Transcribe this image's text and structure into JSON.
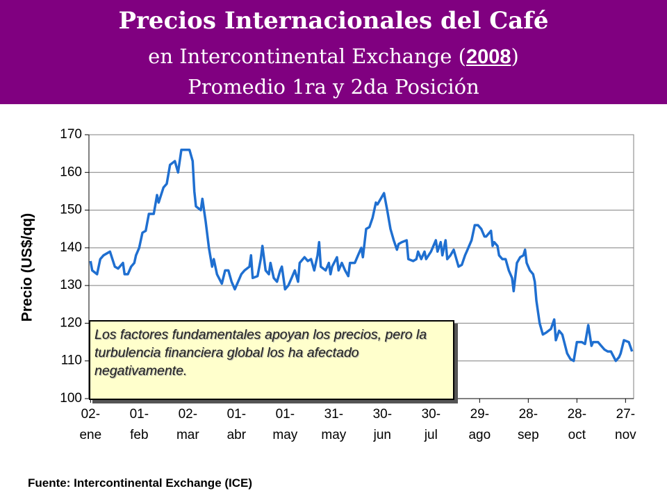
{
  "header": {
    "title": "Precios Internacionales del Café",
    "subtitle_prefix": "en Intercontinental Exchange (",
    "subtitle_year": "2008",
    "subtitle_suffix": ")",
    "subtitle_line2": "Promedio 1ra y 2da Posición"
  },
  "chart_data": {
    "type": "line",
    "y_label": "Precio (US$/qq)",
    "annotation": "Los factores fundamentales apoyan los precios, pero la turbulencia financiera global los ha afectado negativamente.",
    "xlim": [
      -1,
      335
    ],
    "xticks": [
      {
        "value": 0,
        "label": "02-\nene"
      },
      {
        "value": 30,
        "label": "01-\nfeb"
      },
      {
        "value": 60,
        "label": "02-\nmar"
      },
      {
        "value": 90,
        "label": "01-\nabr"
      },
      {
        "value": 120,
        "label": "01-\nmay"
      },
      {
        "value": 150,
        "label": "31-\nmay"
      },
      {
        "value": 180,
        "label": "30-\njun"
      },
      {
        "value": 210,
        "label": "30-\njul"
      },
      {
        "value": 240,
        "label": "29-\nago"
      },
      {
        "value": 270,
        "label": "28-\nsep"
      },
      {
        "value": 300,
        "label": "28-\noct"
      },
      {
        "value": 330,
        "label": "27-\nnov"
      }
    ],
    "ylim": [
      100,
      170
    ],
    "yticks": [
      100,
      110,
      120,
      130,
      140,
      150,
      160,
      170
    ],
    "grid": true,
    "series": [
      {
        "name": "Precio",
        "color": "#1f6fd0",
        "x": [
          0,
          1,
          4,
          6,
          8,
          12,
          15,
          17,
          20,
          21,
          23,
          25,
          27,
          28,
          30,
          32,
          34,
          36,
          39,
          41,
          42,
          45,
          47,
          49,
          52,
          54,
          56,
          58,
          61,
          63,
          64,
          65,
          68,
          69,
          71,
          73,
          75,
          76,
          78,
          81,
          83,
          85,
          87,
          89,
          91,
          93,
          95,
          98,
          99,
          100,
          103,
          105,
          106,
          108,
          110,
          111,
          113,
          115,
          117,
          118,
          120,
          122,
          124,
          126,
          128,
          129,
          132,
          134,
          136,
          138,
          140,
          141,
          142,
          145,
          147,
          148,
          149,
          152,
          153,
          155,
          157,
          159,
          160,
          163,
          165,
          167,
          168,
          170,
          172,
          174,
          176,
          177,
          179,
          181,
          183,
          185,
          187,
          189,
          190,
          192,
          195,
          196,
          199,
          201,
          202,
          204,
          206,
          207,
          210,
          213,
          214,
          216,
          217,
          219,
          220,
          222,
          224,
          225,
          227,
          229,
          231,
          232,
          235,
          237,
          239,
          241,
          243,
          244,
          247,
          248,
          249,
          251,
          252,
          254,
          256,
          258,
          260,
          261,
          263,
          265,
          267,
          268,
          269,
          271,
          273,
          274,
          275,
          277,
          279,
          281,
          284,
          286,
          287,
          289,
          291,
          294,
          296,
          298,
          300,
          303,
          305,
          307,
          309,
          310,
          313,
          315,
          317,
          319,
          321,
          324,
          326,
          327,
          329,
          332,
          334
        ],
        "values": [
          136.5,
          134,
          133,
          137,
          138,
          139,
          135,
          134.5,
          136,
          133,
          133,
          135,
          136,
          138,
          140,
          144,
          144.5,
          149,
          149,
          154,
          152,
          156,
          157,
          162,
          163,
          160,
          166,
          166,
          166,
          163,
          155,
          151,
          150,
          153,
          147,
          140,
          135,
          137,
          133,
          130.5,
          134,
          134,
          131,
          129,
          131,
          133,
          134,
          135,
          138,
          132,
          132.5,
          137,
          140.5,
          134,
          133,
          136,
          132,
          131,
          134,
          135,
          129,
          130,
          132,
          134,
          131,
          136,
          137.5,
          136.5,
          137,
          134,
          138,
          141.5,
          135,
          134,
          136,
          133,
          135,
          137.5,
          134,
          136,
          134,
          132.5,
          136,
          136,
          138,
          140,
          137.5,
          145,
          145.5,
          148,
          152,
          151.5,
          153,
          154.5,
          150,
          145,
          142,
          139.5,
          141,
          141.5,
          142,
          137,
          136.5,
          137,
          139,
          137,
          139,
          137,
          139,
          142,
          139,
          141.5,
          138,
          142,
          137,
          138,
          139.5,
          138,
          135,
          135.5,
          138,
          139,
          142,
          146,
          146,
          145,
          143,
          143,
          144.5,
          140.5,
          141.5,
          140.5,
          138,
          137,
          137,
          134,
          132,
          128.5,
          136,
          137.5,
          138,
          139.5,
          136,
          134,
          133,
          131,
          126,
          120,
          117,
          117.5,
          118.5,
          121,
          115.5,
          118,
          117,
          112,
          110.5,
          110,
          115,
          115,
          114.5,
          119.5,
          114,
          115,
          115,
          114,
          113,
          112.5,
          112.5,
          110,
          111,
          112,
          115.5,
          115,
          112.5
        ]
      }
    ]
  },
  "footer": {
    "source": "Fuente: Intercontinental Exchange (ICE)"
  }
}
